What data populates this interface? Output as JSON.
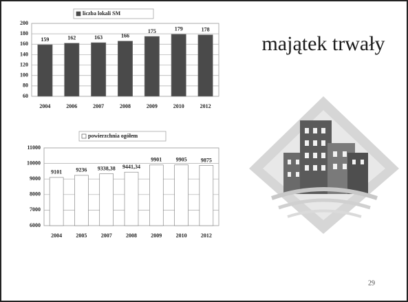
{
  "slide": {
    "title": "majątek trwały",
    "page_number": "29"
  },
  "chart_data": [
    {
      "type": "bar",
      "categories": [
        "2004",
        "2006",
        "2007",
        "2008",
        "2009",
        "2010",
        "2012"
      ],
      "series": [
        {
          "name": "liczba lokali SM",
          "color": "#4a4a4a",
          "values": [
            159,
            162,
            163,
            166,
            175,
            179,
            178
          ]
        }
      ],
      "ylim": [
        60,
        200
      ],
      "yticks": [
        60,
        80,
        100,
        120,
        140,
        160,
        180,
        200
      ],
      "grid": true
    },
    {
      "type": "bar",
      "categories": [
        "2004",
        "2005",
        "2007",
        "2008",
        "2009",
        "2010",
        "2012"
      ],
      "series": [
        {
          "name": "powierzchnia ogółem",
          "color": "#ffffff",
          "values": [
            9101,
            9236,
            9338.38,
            9441.34,
            9901,
            9905,
            9875
          ],
          "value_labels": [
            "9101",
            "9236",
            "9338,38",
            "9441,34",
            "9901",
            "9905",
            "9875"
          ]
        }
      ],
      "ylim": [
        6000,
        11000
      ],
      "yticks": [
        6000,
        7000,
        8000,
        9000,
        10000,
        11000
      ],
      "grid": true
    }
  ]
}
